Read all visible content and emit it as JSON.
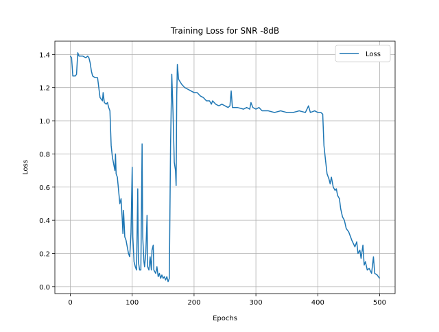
{
  "chart_data": {
    "type": "line",
    "title": "Training Loss for SNR -8dB",
    "x_label": "Epochs",
    "y_label": "Loss",
    "x": [
      0,
      2,
      4,
      8,
      10,
      12,
      14,
      20,
      25,
      28,
      30,
      32,
      34,
      36,
      40,
      44,
      46,
      48,
      50,
      52,
      53,
      55,
      58,
      60,
      62,
      64,
      66,
      68,
      70,
      72,
      73,
      74,
      76,
      78,
      80,
      82,
      84,
      85,
      86,
      88,
      90,
      92,
      94,
      96,
      98,
      100,
      101,
      103,
      105,
      107,
      109,
      110,
      112,
      114,
      116,
      117,
      119,
      120,
      122,
      124,
      125,
      127,
      129,
      131,
      132,
      134,
      135,
      138,
      140,
      142,
      144,
      146,
      148,
      150,
      152,
      154,
      156,
      158,
      160,
      162,
      164,
      166,
      168,
      170,
      171,
      172,
      173,
      175,
      180,
      185,
      190,
      195,
      200,
      205,
      210,
      215,
      220,
      225,
      228,
      230,
      235,
      240,
      245,
      250,
      255,
      258,
      260,
      262,
      270,
      280,
      285,
      290,
      292,
      295,
      300,
      305,
      310,
      320,
      330,
      340,
      350,
      360,
      370,
      380,
      385,
      388,
      395,
      400,
      405,
      408,
      410,
      412,
      415,
      418,
      420,
      422,
      425,
      428,
      430,
      432,
      435,
      437,
      440,
      443,
      446,
      450,
      453,
      455,
      460,
      463,
      465,
      468,
      470,
      473,
      475,
      477,
      480,
      483,
      487,
      490,
      492,
      496,
      500
    ],
    "series": [
      {
        "name": "Loss",
        "color": "#1f77b4",
        "values": [
          1.39,
          1.38,
          1.27,
          1.27,
          1.28,
          1.41,
          1.39,
          1.39,
          1.38,
          1.39,
          1.38,
          1.35,
          1.3,
          1.27,
          1.26,
          1.26,
          1.2,
          1.14,
          1.13,
          1.12,
          1.17,
          1.11,
          1.1,
          1.11,
          1.08,
          1.06,
          0.85,
          0.78,
          0.74,
          0.7,
          0.8,
          0.68,
          0.66,
          0.58,
          0.5,
          0.53,
          0.4,
          0.32,
          0.46,
          0.3,
          0.28,
          0.24,
          0.2,
          0.18,
          0.32,
          0.72,
          0.3,
          0.15,
          0.12,
          0.1,
          0.59,
          0.15,
          0.1,
          0.1,
          0.86,
          0.3,
          0.15,
          0.12,
          0.2,
          0.43,
          0.12,
          0.1,
          0.18,
          0.1,
          0.22,
          0.25,
          0.1,
          0.08,
          0.12,
          0.06,
          0.08,
          0.05,
          0.07,
          0.05,
          0.06,
          0.04,
          0.06,
          0.03,
          0.05,
          0.85,
          1.28,
          1.05,
          0.75,
          0.7,
          0.61,
          1.15,
          1.34,
          1.25,
          1.22,
          1.2,
          1.19,
          1.18,
          1.17,
          1.17,
          1.15,
          1.14,
          1.12,
          1.12,
          1.1,
          1.12,
          1.1,
          1.09,
          1.1,
          1.09,
          1.08,
          1.09,
          1.18,
          1.08,
          1.08,
          1.07,
          1.08,
          1.07,
          1.11,
          1.08,
          1.07,
          1.08,
          1.06,
          1.06,
          1.05,
          1.06,
          1.05,
          1.05,
          1.06,
          1.05,
          1.09,
          1.05,
          1.06,
          1.05,
          1.05,
          1.04,
          0.85,
          0.78,
          0.68,
          0.65,
          0.62,
          0.66,
          0.6,
          0.58,
          0.59,
          0.55,
          0.53,
          0.47,
          0.42,
          0.4,
          0.35,
          0.33,
          0.3,
          0.28,
          0.24,
          0.27,
          0.2,
          0.22,
          0.17,
          0.25,
          0.13,
          0.15,
          0.1,
          0.11,
          0.08,
          0.18,
          0.08,
          0.07,
          0.05
        ]
      }
    ],
    "xlim": [
      -25,
      525
    ],
    "ylim": [
      -0.042,
      1.48
    ],
    "xticks": [
      0,
      100,
      200,
      300,
      400,
      500
    ],
    "yticks": [
      {
        "value": 0,
        "label": "0.0"
      },
      {
        "value": 0.2,
        "label": "0.2"
      },
      {
        "value": 0.4,
        "label": "0.4"
      },
      {
        "value": 0.6,
        "label": "0.6"
      },
      {
        "value": 0.8,
        "label": "0.8"
      },
      {
        "value": 1,
        "label": "1.0"
      },
      {
        "value": 1.2,
        "label": "1.2"
      },
      {
        "value": 1.4,
        "label": "1.4"
      }
    ],
    "grid": true,
    "legend": "upper right"
  }
}
